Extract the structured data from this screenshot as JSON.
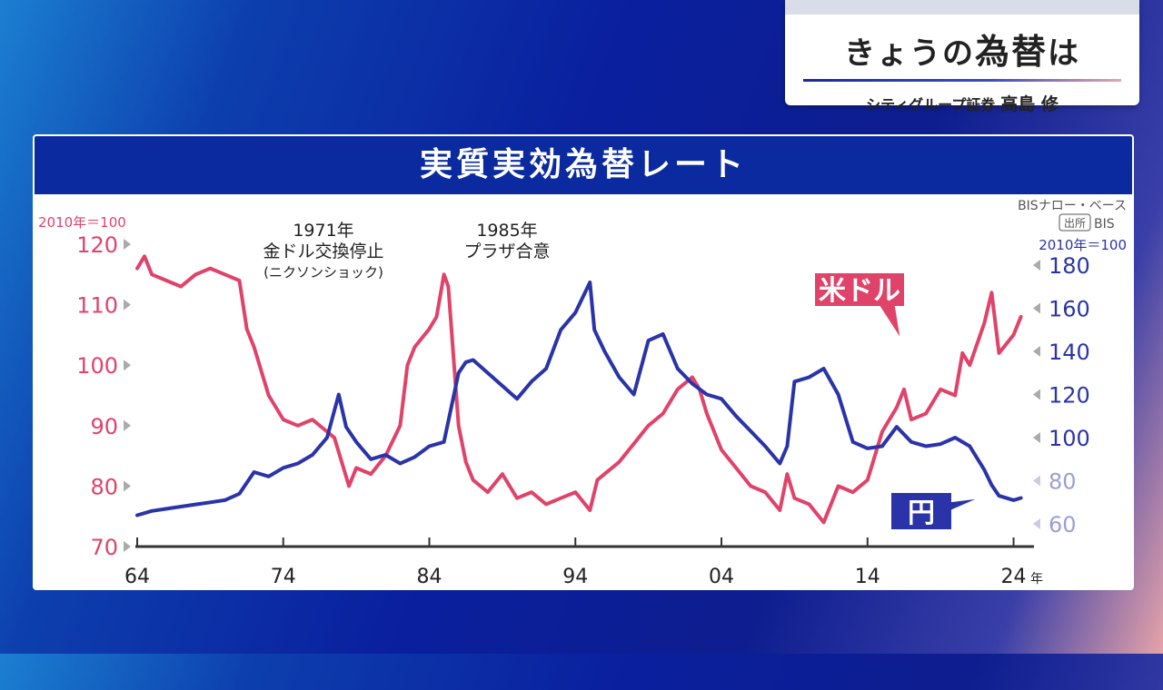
{
  "header": {
    "title_part1": "きょうの",
    "title_part2": "為替",
    "title_part3": "は",
    "affiliation": "シティグループ証券",
    "name": "高島 修"
  },
  "panel": {
    "title": "実質実効為替レート"
  },
  "colors": {
    "usd": "#e0436a",
    "jpy": "#2a34a8",
    "accent_bg": "#0b2aa0"
  },
  "chart_data": {
    "type": "line",
    "title": "実質実効為替レート",
    "left_axis": {
      "unit_label": "2010年＝100",
      "ticks": [
        120,
        110,
        100,
        90,
        80,
        70
      ],
      "ylim": [
        70,
        122
      ]
    },
    "right_axis": {
      "source_lines": [
        "BISナロー・ベース"
      ],
      "source_badge": "出所",
      "source_name": "BIS",
      "unit_label": "2010年＝100",
      "ticks": [
        180,
        160,
        140,
        120,
        100,
        80,
        60
      ],
      "ylim": [
        54,
        190
      ]
    },
    "x_axis": {
      "ticks": [
        "64",
        "74",
        "84",
        "94",
        "04",
        "14",
        "24"
      ],
      "unit": "年",
      "xlim": [
        1964,
        2024.9
      ]
    },
    "annotations": [
      {
        "lines": [
          "1971年",
          "金ドル交換停止",
          "(ニクソンショック)"
        ],
        "x": 1971
      },
      {
        "lines": [
          "1985年",
          "プラザ合意"
        ],
        "x": 1985
      }
    ],
    "series": [
      {
        "name": "米ドル",
        "axis": "left",
        "x": [
          1964,
          1964.5,
          1965,
          1966,
          1967,
          1968,
          1969,
          1970,
          1971,
          1971.5,
          1972,
          1973,
          1974,
          1975,
          1976,
          1977,
          1977.5,
          1978,
          1978.5,
          1979,
          1980,
          1981,
          1982,
          1982.5,
          1983,
          1984,
          1984.5,
          1985,
          1985.3,
          1985.7,
          1986,
          1986.5,
          1987,
          1988,
          1989,
          1990,
          1991,
          1992,
          1993,
          1994,
          1995,
          1995.5,
          1996,
          1997,
          1998,
          1999,
          2000,
          2001,
          2002,
          2002.5,
          2003,
          2004,
          2005,
          2006,
          2007,
          2008,
          2008.5,
          2009,
          2010,
          2011,
          2012,
          2013,
          2014,
          2015,
          2016,
          2016.5,
          2017,
          2018,
          2019,
          2020,
          2020.5,
          2021,
          2022,
          2022.5,
          2023,
          2024,
          2024.5
        ],
        "values": [
          116,
          118,
          115,
          114,
          113,
          115,
          116,
          115,
          114,
          106,
          103,
          95,
          91,
          90,
          91,
          89,
          88,
          84,
          80,
          83,
          82,
          85,
          90,
          100,
          103,
          106,
          108,
          115,
          113,
          100,
          90,
          84,
          81,
          79,
          82,
          78,
          79,
          77,
          78,
          79,
          76,
          81,
          82,
          84,
          87,
          90,
          92,
          96,
          98,
          96,
          92,
          86,
          83,
          80,
          79,
          76,
          82,
          78,
          77,
          74,
          80,
          79,
          81,
          89,
          93,
          96,
          91,
          92,
          96,
          95,
          102,
          100,
          107,
          112,
          102,
          105,
          108
        ]
      },
      {
        "name": "円",
        "axis": "right",
        "x": [
          1964,
          1965,
          1966,
          1967,
          1968,
          1969,
          1970,
          1971,
          1972,
          1973,
          1974,
          1975,
          1976,
          1977,
          1977.8,
          1978.3,
          1979,
          1980,
          1981,
          1982,
          1983,
          1984,
          1985,
          1986,
          1986.5,
          1987,
          1988,
          1989,
          1990,
          1991,
          1992,
          1993,
          1994,
          1995,
          1995.3,
          1996,
          1997,
          1998,
          1999,
          2000,
          2001,
          2002,
          2003,
          2004,
          2005,
          2006,
          2007,
          2008,
          2008.5,
          2009,
          2010,
          2011,
          2012,
          2013,
          2014,
          2015,
          2016,
          2017,
          2018,
          2019,
          2020,
          2021,
          2022,
          2022.5,
          2023,
          2024,
          2024.5
        ],
        "values": [
          64,
          66,
          67,
          68,
          69,
          70,
          71,
          74,
          84,
          82,
          86,
          88,
          92,
          100,
          120,
          105,
          98,
          90,
          92,
          88,
          91,
          96,
          98,
          130,
          135,
          136,
          130,
          124,
          118,
          126,
          132,
          150,
          158,
          172,
          150,
          140,
          128,
          120,
          145,
          148,
          132,
          125,
          120,
          118,
          110,
          103,
          96,
          88,
          96,
          126,
          128,
          132,
          120,
          98,
          95,
          96,
          105,
          98,
          96,
          97,
          100,
          96,
          85,
          78,
          73,
          71,
          72
        ]
      }
    ],
    "series_labels": [
      {
        "series": "米ドル",
        "text": "米ドル"
      },
      {
        "series": "円",
        "text": "円"
      }
    ]
  }
}
